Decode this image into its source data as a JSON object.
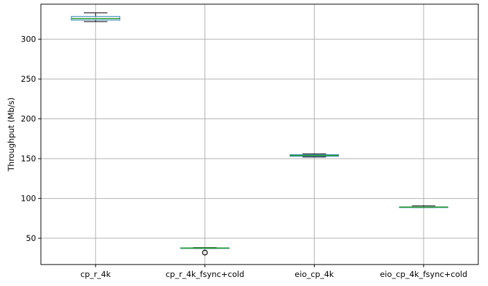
{
  "chart_data": {
    "type": "box",
    "title": "",
    "xlabel": "",
    "ylabel": "Throughput (Mb/s)",
    "ylim": [
      17,
      344
    ],
    "yticks": [
      50,
      100,
      150,
      200,
      250,
      300
    ],
    "grid": true,
    "categories": [
      "cp_r_4k",
      "cp_r_4k_fsync+cold",
      "eio_cp_4k",
      "eio_cp_4k_fsync+cold"
    ],
    "boxes": [
      {
        "category": "cp_r_4k",
        "whisker_low": 322,
        "q1": 324,
        "median": 326,
        "q3": 328.5,
        "whisker_high": 333,
        "outliers": []
      },
      {
        "category": "cp_r_4k_fsync+cold",
        "whisker_low": 37.2,
        "q1": 37.5,
        "median": 37.7,
        "q3": 38.0,
        "whisker_high": 38.3,
        "outliers": [
          32
        ]
      },
      {
        "category": "eio_cp_4k",
        "whisker_low": 152,
        "q1": 153,
        "median": 154,
        "q3": 155,
        "whisker_high": 156,
        "outliers": []
      },
      {
        "category": "eio_cp_4k_fsync+cold",
        "whisker_low": 88.6,
        "q1": 88.9,
        "median": 89.1,
        "q3": 89.4,
        "whisker_high": 90.8,
        "outliers": []
      }
    ],
    "colors": {
      "box": "#1f77b4",
      "median": "#2ca02c",
      "whisker": "#000000",
      "grid": "#b0b0b0"
    }
  }
}
